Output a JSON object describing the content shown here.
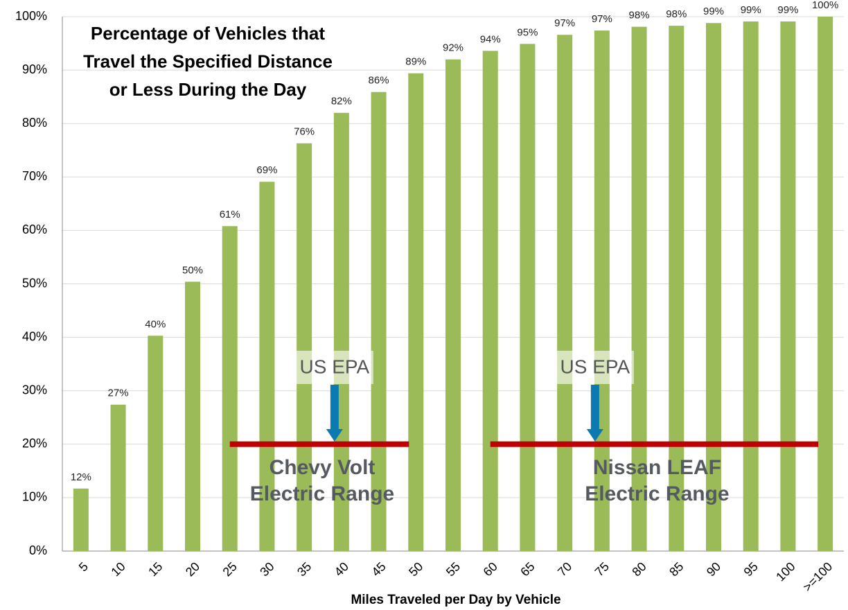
{
  "chart_data": {
    "type": "bar",
    "title": [
      "Percentage of Vehicles that",
      "Travel the Specified Distance",
      "or Less During the Day"
    ],
    "x_label": "Miles Traveled per Day by Vehicle",
    "categories": [
      "5",
      "10",
      "15",
      "20",
      "25",
      "30",
      "35",
      "40",
      "45",
      "50",
      "55",
      "60",
      "65",
      "70",
      "75",
      "80",
      "85",
      "90",
      "95",
      "100",
      ">=100"
    ],
    "values": [
      11.7,
      27.4,
      40.3,
      50.4,
      60.8,
      69.1,
      76.3,
      82.0,
      85.9,
      89.4,
      92.0,
      93.6,
      94.9,
      96.6,
      97.4,
      98.1,
      98.3,
      98.8,
      99.1,
      99.1,
      100
    ],
    "value_labels": [
      "12%",
      "27%",
      "40%",
      "50%",
      "61%",
      "69%",
      "76%",
      "82%",
      "86%",
      "89%",
      "92%",
      "94%",
      "95%",
      "97%",
      "97%",
      "98%",
      "98%",
      "99%",
      "99%",
      "99%",
      "100%"
    ],
    "color": "#9bbb59",
    "ylim": [
      0,
      100
    ],
    "yticks": [
      {
        "value": 0,
        "label": "0%"
      },
      {
        "value": 10,
        "label": "10%"
      },
      {
        "value": 20,
        "label": "20%"
      },
      {
        "value": 30,
        "label": "30%"
      },
      {
        "value": 40,
        "label": "40%"
      },
      {
        "value": 50,
        "label": "50%"
      },
      {
        "value": 60,
        "label": "60%"
      },
      {
        "value": 70,
        "label": "70%"
      },
      {
        "value": 80,
        "label": "80%"
      },
      {
        "value": 90,
        "label": "90%"
      },
      {
        "value": 100,
        "label": "100%"
      }
    ],
    "grid": true,
    "annotations": [
      {
        "label": [
          "Chevy Volt",
          "Electric Range"
        ],
        "value": 20,
        "from": "25",
        "to": "50",
        "marker": "US EPA",
        "marker_at": "40",
        "color": "#c00000"
      },
      {
        "label": [
          "Nissan LEAF",
          "Electric Range"
        ],
        "value": 20,
        "from": "60",
        "to": ">=100",
        "marker": "US EPA",
        "marker_at": "75",
        "color": "#c00000"
      }
    ]
  }
}
